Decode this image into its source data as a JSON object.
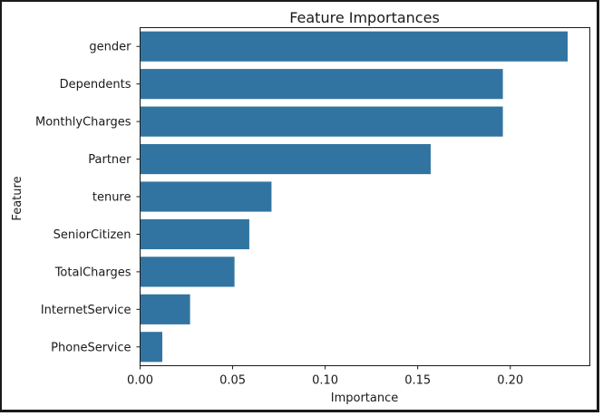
{
  "chart_data": {
    "type": "bar",
    "orientation": "horizontal",
    "title": "Feature Importances",
    "xlabel": "Importance",
    "ylabel": "Feature",
    "categories": [
      "gender",
      "Dependents",
      "MonthlyCharges",
      "Partner",
      "tenure",
      "SeniorCitizen",
      "TotalCharges",
      "InternetService",
      "PhoneService"
    ],
    "values": [
      0.231,
      0.196,
      0.196,
      0.157,
      0.071,
      0.059,
      0.051,
      0.027,
      0.012
    ],
    "xlim": [
      0,
      0.243
    ],
    "xticks": [
      "0.00",
      "0.05",
      "0.10",
      "0.15",
      "0.20"
    ],
    "xtick_values": [
      0,
      0.05,
      0.1,
      0.15,
      0.2
    ],
    "bar_color": "#3274a1",
    "grid": false,
    "legend": "none"
  }
}
